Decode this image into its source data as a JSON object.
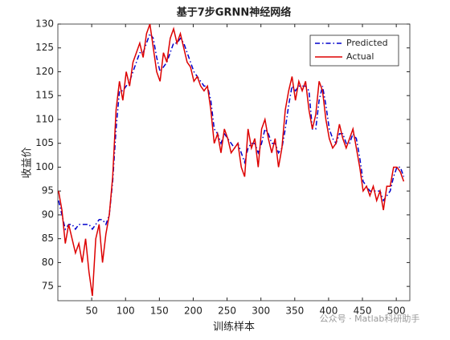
{
  "chart_data": {
    "type": "line",
    "title": "基于7步GRNN神经网络",
    "xlabel": "训练样本",
    "ylabel": "收益价",
    "watermark": "公众号 · Matlab科研助手",
    "x": [
      1,
      6,
      11,
      16,
      21,
      26,
      31,
      36,
      41,
      46,
      51,
      56,
      61,
      66,
      71,
      76,
      81,
      86,
      91,
      96,
      101,
      106,
      111,
      116,
      121,
      126,
      131,
      136,
      141,
      146,
      151,
      156,
      161,
      166,
      171,
      176,
      181,
      186,
      191,
      196,
      201,
      206,
      211,
      216,
      221,
      226,
      231,
      236,
      241,
      246,
      251,
      256,
      261,
      266,
      271,
      276,
      281,
      286,
      291,
      296,
      301,
      306,
      311,
      316,
      321,
      326,
      331,
      336,
      341,
      346,
      351,
      356,
      361,
      366,
      371,
      376,
      381,
      386,
      391,
      396,
      401,
      406,
      411,
      416,
      421,
      426,
      431,
      436,
      441,
      446,
      451,
      456,
      461,
      466,
      471,
      476,
      481,
      486,
      491,
      496,
      501,
      506,
      511
    ],
    "series": [
      {
        "name": "Predicted",
        "color": "#0000cc",
        "dash": "dashdot",
        "values": [
          93,
          90,
          87,
          88,
          88,
          87,
          88,
          88,
          88,
          88,
          87,
          88,
          89,
          89,
          88,
          90,
          97,
          108,
          116,
          116,
          117,
          118,
          120,
          122,
          124,
          124,
          126,
          128,
          127,
          123,
          120,
          121,
          122,
          124,
          126,
          126,
          127,
          126,
          124,
          122,
          120,
          119,
          118,
          117,
          117,
          114,
          108,
          107,
          105,
          107,
          106,
          105,
          104,
          105,
          103,
          101,
          104,
          105,
          105,
          103,
          105,
          108,
          107,
          105,
          105,
          103,
          104,
          108,
          113,
          117,
          116,
          117,
          117,
          117,
          116,
          108,
          108,
          114,
          117,
          113,
          108,
          106,
          105,
          107,
          107,
          105,
          105,
          107,
          106,
          102,
          97,
          96,
          95,
          95,
          95,
          95,
          93,
          94,
          95,
          98,
          100,
          100,
          98
        ]
      },
      {
        "name": "Actual",
        "color": "#dd0000",
        "dash": "solid",
        "values": [
          95,
          91,
          84,
          88,
          85,
          82,
          84,
          80,
          85,
          78,
          73,
          85,
          88,
          80,
          86,
          90,
          98,
          112,
          118,
          114,
          120,
          117,
          122,
          124,
          126,
          123,
          128,
          130,
          125,
          120,
          118,
          124,
          122,
          127,
          129,
          126,
          128,
          125,
          122,
          121,
          118,
          119,
          117,
          116,
          117,
          112,
          105,
          107,
          103,
          108,
          106,
          103,
          104,
          105,
          100,
          98,
          108,
          104,
          106,
          100,
          108,
          110,
          106,
          103,
          106,
          100,
          104,
          112,
          116,
          119,
          114,
          118,
          116,
          118,
          112,
          108,
          111,
          118,
          116,
          110,
          106,
          104,
          105,
          109,
          106,
          104,
          106,
          108,
          104,
          100,
          95,
          96,
          94,
          96,
          93,
          95,
          91,
          96,
          96,
          100,
          100,
          99,
          97
        ]
      }
    ],
    "xlim": [
      0,
      520
    ],
    "xticks": [
      50,
      100,
      150,
      200,
      250,
      300,
      350,
      400,
      450,
      500
    ],
    "ylim": [
      72,
      130
    ],
    "yticks": [
      75,
      80,
      85,
      90,
      95,
      100,
      105,
      110,
      115,
      120,
      125,
      130
    ],
    "legend": "top-right"
  }
}
